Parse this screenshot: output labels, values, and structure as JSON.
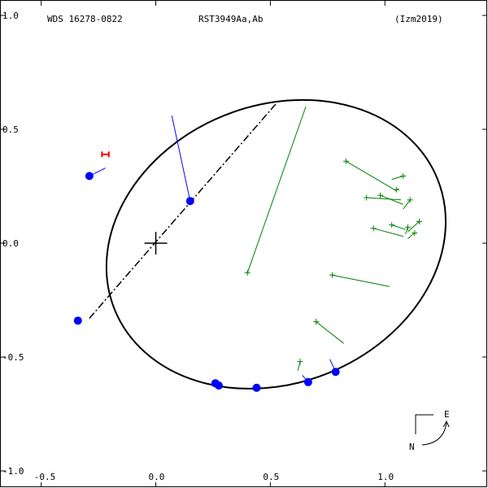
{
  "header": {
    "left": "WDS 16278-0822",
    "center": "RST3949Aa,Ab",
    "right": "(Izm2019)"
  },
  "chart_data": {
    "type": "scatter",
    "title": "RST3949Aa,Ab",
    "xlim": [
      -0.68,
      1.45
    ],
    "ylim": [
      -1.0,
      1.0
    ],
    "x_ticks": [
      -0.5,
      0.0,
      0.5,
      1.0
    ],
    "x_tick_labels": [
      "-0.5",
      "0.0",
      "0.5",
      "1.0"
    ],
    "y_ticks": [
      1.0,
      0.5,
      0.0,
      -0.5,
      -1.0
    ],
    "y_tick_labels": [
      "1.0",
      "0.5",
      "0.0",
      "-0.5",
      "-1.0"
    ],
    "grid": false,
    "orbit_ellipse": {
      "cx": 0.525,
      "cy": -0.005,
      "rx": 0.76,
      "ry": 0.61,
      "rotation_deg": 22
    },
    "line_of_nodes": [
      [
        -0.29,
        -0.33
      ],
      [
        0.54,
        0.63
      ]
    ],
    "origin_marker": [
      0.0,
      0.0
    ],
    "series": [
      {
        "kind": "measurement",
        "color": "#0000ff",
        "marker": "filled-circle",
        "points": [
          {
            "x": -0.29,
            "y": 0.295,
            "orbit_x": -0.22,
            "orbit_y": 0.33
          },
          {
            "x": 0.15,
            "y": 0.185,
            "orbit_x": 0.07,
            "orbit_y": 0.56
          },
          {
            "x": -0.34,
            "y": -0.34,
            "orbit_x": -0.34,
            "orbit_y": -0.34
          },
          {
            "x": 0.26,
            "y": -0.615,
            "orbit_x": 0.26,
            "orbit_y": -0.615
          },
          {
            "x": 0.275,
            "y": -0.625,
            "orbit_x": 0.275,
            "orbit_y": -0.625
          },
          {
            "x": 0.44,
            "y": -0.635,
            "orbit_x": 0.44,
            "orbit_y": -0.635
          },
          {
            "x": 0.665,
            "y": -0.61,
            "orbit_x": 0.64,
            "orbit_y": -0.58
          },
          {
            "x": 0.785,
            "y": -0.565,
            "orbit_x": 0.76,
            "orbit_y": -0.51
          }
        ]
      },
      {
        "kind": "measurement",
        "color": "#008000",
        "marker": "plus",
        "points": [
          {
            "x": 0.4,
            "y": -0.13,
            "orbit_x": 0.655,
            "orbit_y": 0.6
          },
          {
            "x": 0.83,
            "y": 0.36,
            "orbit_x": 1.05,
            "orbit_y": 0.23
          },
          {
            "x": 1.08,
            "y": 0.295,
            "orbit_x": 1.03,
            "orbit_y": 0.28
          },
          {
            "x": 1.05,
            "y": 0.235,
            "orbit_x": 1.06,
            "orbit_y": 0.24
          },
          {
            "x": 0.92,
            "y": 0.2,
            "orbit_x": 1.07,
            "orbit_y": 0.19
          },
          {
            "x": 0.98,
            "y": 0.21,
            "orbit_x": 1.08,
            "orbit_y": 0.17
          },
          {
            "x": 1.11,
            "y": 0.19,
            "orbit_x": 1.08,
            "orbit_y": 0.15
          },
          {
            "x": 1.03,
            "y": 0.08,
            "orbit_x": 1.09,
            "orbit_y": 0.06
          },
          {
            "x": 1.15,
            "y": 0.095,
            "orbit_x": 1.1,
            "orbit_y": 0.05
          },
          {
            "x": 1.1,
            "y": 0.07,
            "orbit_x": 1.09,
            "orbit_y": 0.04
          },
          {
            "x": 0.95,
            "y": 0.065,
            "orbit_x": 1.08,
            "orbit_y": 0.03
          },
          {
            "x": 1.13,
            "y": 0.045,
            "orbit_x": 1.1,
            "orbit_y": 0.02
          },
          {
            "x": 0.77,
            "y": -0.14,
            "orbit_x": 1.02,
            "orbit_y": -0.19
          },
          {
            "x": 0.7,
            "y": -0.345,
            "orbit_x": 0.82,
            "orbit_y": -0.44
          },
          {
            "x": 0.63,
            "y": -0.52,
            "orbit_x": 0.62,
            "orbit_y": -0.56
          }
        ]
      },
      {
        "kind": "first-measurement",
        "color": "#ff0000",
        "marker": "error-bar",
        "points": [
          {
            "x": -0.22,
            "y": 0.39,
            "half_width": 0.015
          }
        ]
      }
    ],
    "compass": {
      "north_label": "N",
      "east_label": "E"
    }
  }
}
